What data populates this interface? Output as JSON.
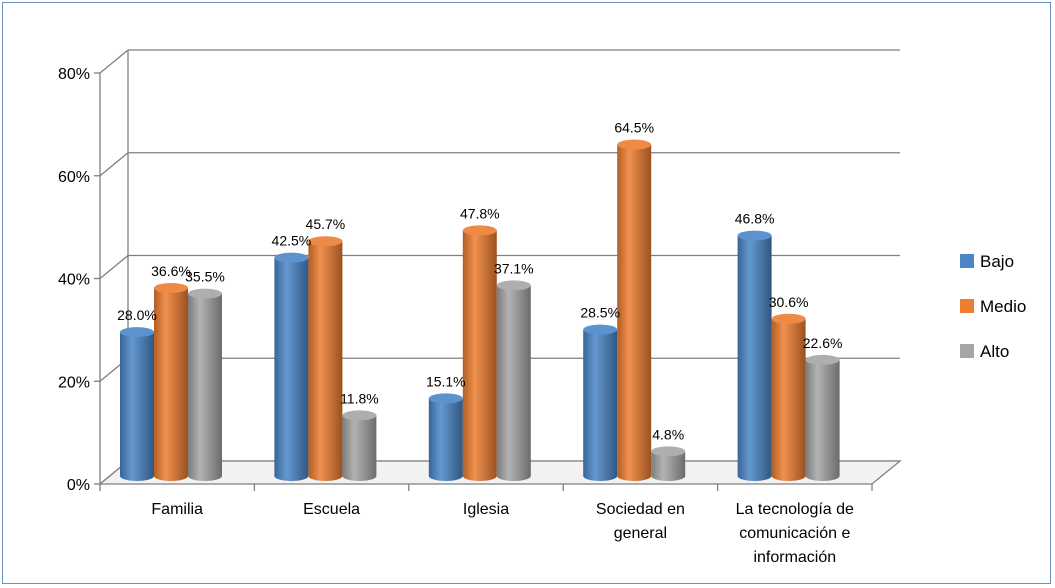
{
  "chart_data": {
    "type": "bar",
    "categories": [
      [
        "Familia"
      ],
      [
        "Escuela"
      ],
      [
        "Iglesia"
      ],
      [
        "Sociedad en",
        "general"
      ],
      [
        "La tecnología de",
        "comunicación e",
        "información"
      ]
    ],
    "series": [
      {
        "name": "Bajo",
        "values": [
          28.0,
          42.5,
          15.1,
          28.5,
          46.8
        ],
        "color": "#4a86c8"
      },
      {
        "name": "Medio",
        "values": [
          36.6,
          45.7,
          47.8,
          64.5,
          30.6
        ],
        "color": "#ed7d31"
      },
      {
        "name": "Alto",
        "values": [
          35.5,
          11.8,
          37.1,
          4.8,
          22.6
        ],
        "color": "#a5a5a5"
      }
    ],
    "data_labels": [
      [
        "28.0%",
        "42.5%",
        "15.1%",
        "28.5%",
        "46.8%"
      ],
      [
        "36.6%",
        "45.7%",
        "47.8%",
        "64.5%",
        "30.6%"
      ],
      [
        "35.5%",
        "11.8%",
        "37.1%",
        "4.8%",
        "22.6%"
      ]
    ],
    "yticks": [
      0,
      20,
      40,
      60,
      80
    ],
    "ytick_labels": [
      "0%",
      "20%",
      "40%",
      "60%",
      "80%"
    ],
    "ylim": [
      0,
      80
    ],
    "grid": true,
    "legend_position": "right"
  }
}
